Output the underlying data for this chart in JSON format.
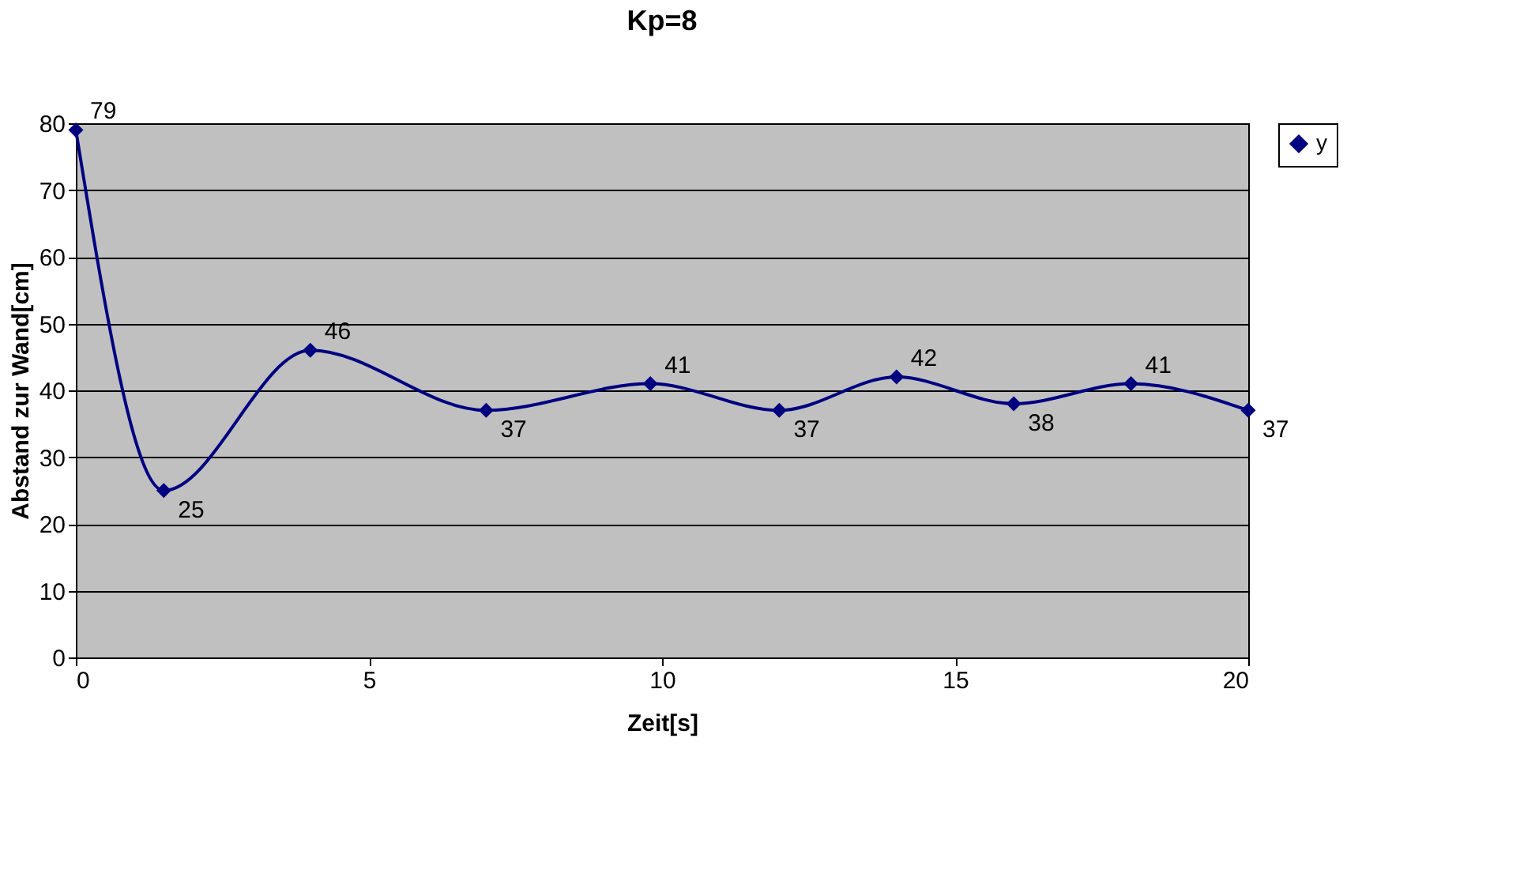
{
  "chart_data": {
    "type": "line",
    "title": "Kp=8",
    "xlabel": "Zeit[s]",
    "ylabel": "Abstand zur Wand[cm]",
    "x": [
      0,
      1.5,
      4,
      7,
      9.8,
      12,
      14,
      16,
      18,
      20
    ],
    "series": [
      {
        "name": "y",
        "color": "#000080",
        "values": [
          79,
          25,
          46,
          37,
          41,
          37,
          42,
          38,
          41,
          37
        ]
      }
    ],
    "xlim": [
      0,
      20
    ],
    "xticks": [
      0,
      5,
      10,
      15,
      20
    ],
    "ylim": [
      0,
      80
    ],
    "yticks": [
      0,
      10,
      20,
      30,
      40,
      50,
      60,
      70,
      80
    ],
    "grid": "y",
    "legend": "right",
    "marker": "diamond",
    "line_style": "solid",
    "data_labels": true
  }
}
